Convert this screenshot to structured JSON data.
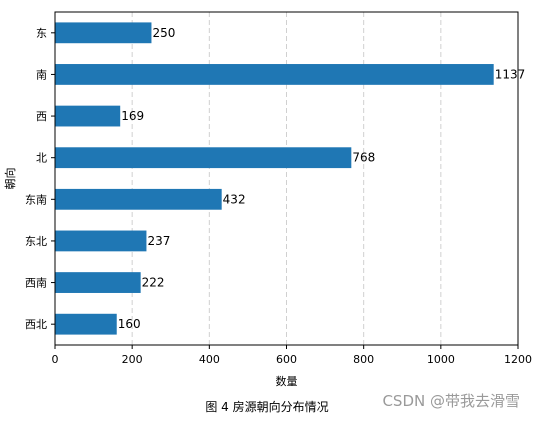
{
  "chart_data": {
    "type": "bar",
    "orientation": "horizontal",
    "categories": [
      "东",
      "南",
      "西",
      "北",
      "东南",
      "东北",
      "西南",
      "西北"
    ],
    "values": [
      250,
      1137,
      169,
      768,
      432,
      237,
      222,
      160
    ],
    "data_labels": [
      "250",
      "1137",
      "169",
      "768",
      "432",
      "237",
      "222",
      "160"
    ],
    "xlabel": "数量",
    "ylabel": "朝向",
    "xlim": [
      0,
      1200
    ],
    "xticks": [
      "0",
      "200",
      "400",
      "600",
      "800",
      "1000",
      "1200"
    ],
    "grid": "vertical-dashed",
    "bar_color": "#1f77b4"
  },
  "caption": "图 4 房源朝向分布情况",
  "watermark": "CSDN @带我去滑雪"
}
